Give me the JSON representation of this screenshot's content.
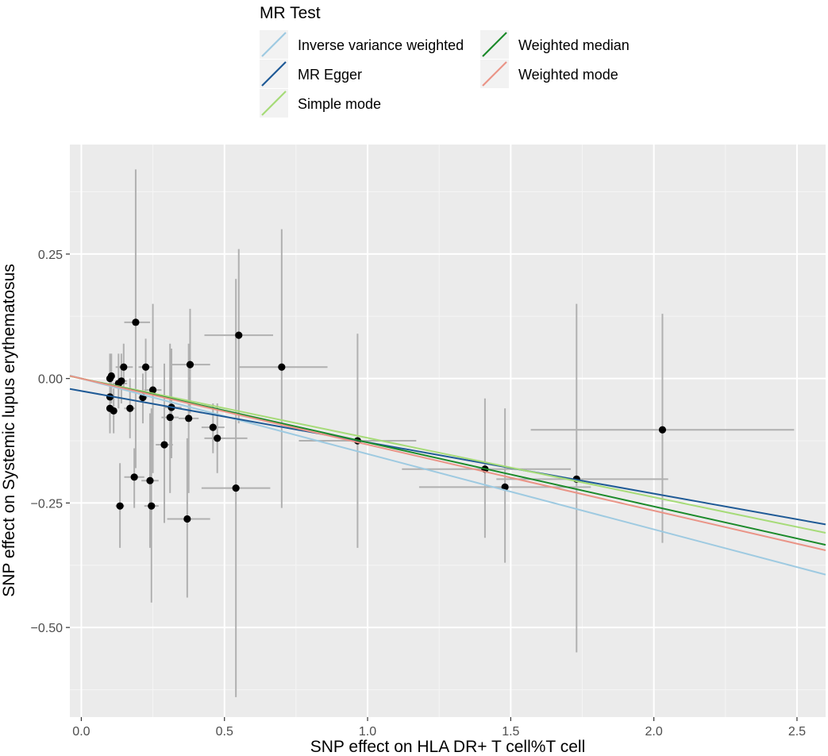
{
  "chart_data": {
    "type": "scatter",
    "xlabel": "SNP effect on HLA DR+ T cell%T cell",
    "ylabel": "SNP effect on Systemic lupus erythematosus",
    "xlim": [
      -0.04,
      2.6
    ],
    "ylim": [
      -0.68,
      0.47
    ],
    "x_ticks": [
      0.0,
      0.5,
      1.0,
      1.5,
      2.0,
      2.5
    ],
    "x_tick_labels": [
      "0.0",
      "0.5",
      "1.0",
      "1.5",
      "2.0",
      "2.5"
    ],
    "y_ticks": [
      0.25,
      0.0,
      -0.25,
      -0.5
    ],
    "y_tick_labels": [
      "0.25",
      "0.00",
      "−0.25",
      "−0.50"
    ],
    "grid": true,
    "legend": {
      "title": "MR Test",
      "placement": "top",
      "entries": [
        {
          "label": "Inverse variance weighted",
          "color": "#9ecae1"
        },
        {
          "label": "MR Egger",
          "color": "#1f5a96"
        },
        {
          "label": "Simple mode",
          "color": "#a6db78"
        },
        {
          "label": "Weighted median",
          "color": "#1b8a2a"
        },
        {
          "label": "Weighted mode",
          "color": "#ea9487"
        }
      ]
    },
    "lines": [
      {
        "name": "Inverse variance weighted",
        "color": "#9ecae1",
        "intercept": 0.0,
        "slope": -0.1515
      },
      {
        "name": "MR Egger",
        "color": "#1f5a96",
        "intercept": -0.025,
        "slope": -0.1031
      },
      {
        "name": "Simple mode",
        "color": "#a6db78",
        "intercept": 0.0,
        "slope": -0.1192
      },
      {
        "name": "Weighted median",
        "color": "#1b8a2a",
        "intercept": 0.0,
        "slope": -0.1285
      },
      {
        "name": "Weighted mode",
        "color": "#ea9487",
        "intercept": 0.0,
        "slope": -0.1327
      }
    ],
    "points": [
      {
        "x": 0.1,
        "y": 0.0,
        "xlo": 0.09,
        "xhi": 0.11,
        "ylo": -0.05,
        "yhi": 0.05
      },
      {
        "x": 0.105,
        "y": 0.005,
        "xlo": 0.095,
        "xhi": 0.115,
        "ylo": -0.05,
        "yhi": 0.05
      },
      {
        "x": 0.1,
        "y": -0.037,
        "xlo": 0.09,
        "xhi": 0.11,
        "ylo": -0.1,
        "yhi": 0.03
      },
      {
        "x": 0.1,
        "y": -0.06,
        "xlo": 0.09,
        "xhi": 0.11,
        "ylo": -0.11,
        "yhi": -0.01
      },
      {
        "x": 0.113,
        "y": -0.065,
        "xlo": 0.1,
        "xhi": 0.125,
        "ylo": -0.11,
        "yhi": -0.02
      },
      {
        "x": 0.13,
        "y": -0.01,
        "xlo": 0.11,
        "xhi": 0.16,
        "ylo": -0.06,
        "yhi": 0.05
      },
      {
        "x": 0.14,
        "y": -0.005,
        "xlo": 0.12,
        "xhi": 0.16,
        "ylo": -0.05,
        "yhi": 0.05
      },
      {
        "x": 0.148,
        "y": 0.023,
        "xlo": 0.12,
        "xhi": 0.18,
        "ylo": -0.02,
        "yhi": 0.07
      },
      {
        "x": 0.135,
        "y": -0.256,
        "xlo": 0.12,
        "xhi": 0.15,
        "ylo": -0.34,
        "yhi": -0.17
      },
      {
        "x": 0.17,
        "y": -0.06,
        "xlo": 0.15,
        "xhi": 0.19,
        "ylo": -0.12,
        "yhi": 0.0
      },
      {
        "x": 0.19,
        "y": 0.113,
        "xlo": 0.15,
        "xhi": 0.24,
        "ylo": -0.18,
        "yhi": 0.42
      },
      {
        "x": 0.185,
        "y": -0.198,
        "xlo": 0.15,
        "xhi": 0.22,
        "ylo": -0.26,
        "yhi": -0.14
      },
      {
        "x": 0.215,
        "y": -0.038,
        "xlo": 0.2,
        "xhi": 0.23,
        "ylo": -0.09,
        "yhi": 0.01
      },
      {
        "x": 0.225,
        "y": 0.023,
        "xlo": 0.2,
        "xhi": 0.25,
        "ylo": -0.03,
        "yhi": 0.08
      },
      {
        "x": 0.24,
        "y": -0.205,
        "xlo": 0.21,
        "xhi": 0.27,
        "ylo": -0.34,
        "yhi": -0.07
      },
      {
        "x": 0.245,
        "y": -0.256,
        "xlo": 0.22,
        "xhi": 0.27,
        "ylo": -0.45,
        "yhi": -0.06
      },
      {
        "x": 0.25,
        "y": -0.023,
        "xlo": 0.22,
        "xhi": 0.28,
        "ylo": -0.19,
        "yhi": 0.15
      },
      {
        "x": 0.29,
        "y": -0.133,
        "xlo": 0.26,
        "xhi": 0.32,
        "ylo": -0.29,
        "yhi": 0.03
      },
      {
        "x": 0.31,
        "y": -0.078,
        "xlo": 0.28,
        "xhi": 0.34,
        "ylo": -0.23,
        "yhi": 0.07
      },
      {
        "x": 0.315,
        "y": -0.058,
        "xlo": 0.29,
        "xhi": 0.35,
        "ylo": -0.16,
        "yhi": 0.06
      },
      {
        "x": 0.375,
        "y": -0.08,
        "xlo": 0.34,
        "xhi": 0.41,
        "ylo": -0.23,
        "yhi": 0.07
      },
      {
        "x": 0.38,
        "y": 0.028,
        "xlo": 0.31,
        "xhi": 0.45,
        "ylo": -0.07,
        "yhi": 0.14
      },
      {
        "x": 0.37,
        "y": -0.282,
        "xlo": 0.3,
        "xhi": 0.45,
        "ylo": -0.44,
        "yhi": -0.12
      },
      {
        "x": 0.46,
        "y": -0.098,
        "xlo": 0.42,
        "xhi": 0.5,
        "ylo": -0.15,
        "yhi": -0.05
      },
      {
        "x": 0.475,
        "y": -0.12,
        "xlo": 0.43,
        "xhi": 0.58,
        "ylo": -0.19,
        "yhi": -0.05
      },
      {
        "x": 0.54,
        "y": -0.22,
        "xlo": 0.42,
        "xhi": 0.66,
        "ylo": -0.64,
        "yhi": 0.2
      },
      {
        "x": 0.55,
        "y": 0.087,
        "xlo": 0.43,
        "xhi": 0.67,
        "ylo": -0.09,
        "yhi": 0.26
      },
      {
        "x": 0.7,
        "y": 0.023,
        "xlo": 0.55,
        "xhi": 0.86,
        "ylo": -0.26,
        "yhi": 0.3
      },
      {
        "x": 0.965,
        "y": -0.125,
        "xlo": 0.76,
        "xhi": 1.17,
        "ylo": -0.34,
        "yhi": 0.09
      },
      {
        "x": 1.41,
        "y": -0.182,
        "xlo": 1.12,
        "xhi": 1.71,
        "ylo": -0.32,
        "yhi": -0.04
      },
      {
        "x": 1.48,
        "y": -0.218,
        "xlo": 1.18,
        "xhi": 1.78,
        "ylo": -0.37,
        "yhi": -0.06
      },
      {
        "x": 1.73,
        "y": -0.202,
        "xlo": 1.45,
        "xhi": 2.05,
        "ylo": -0.55,
        "yhi": 0.15
      },
      {
        "x": 2.03,
        "y": -0.103,
        "xlo": 1.57,
        "xhi": 2.49,
        "ylo": -0.33,
        "yhi": 0.13
      }
    ]
  }
}
